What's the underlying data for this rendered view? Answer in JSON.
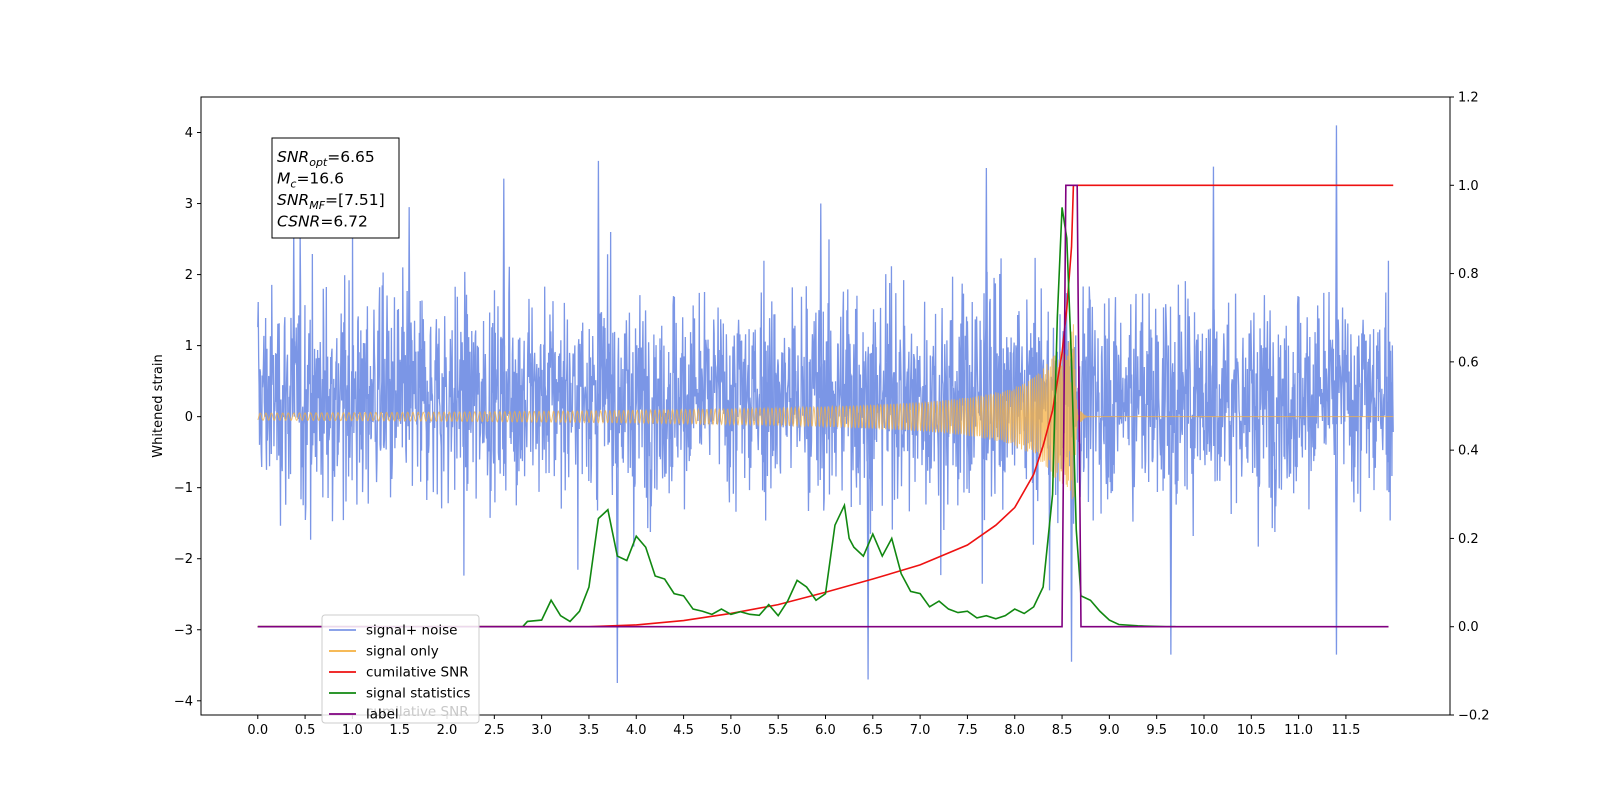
{
  "chart_data": {
    "type": "line",
    "xlabel": "",
    "ylabel": "Whitened strain",
    "xlim": [
      -0.6,
      12.6
    ],
    "ylim": [
      -4.2,
      4.5
    ],
    "y2lim": [
      -0.2,
      1.2
    ],
    "xticks": [
      0.0,
      0.5,
      1.0,
      1.5,
      2.0,
      2.5,
      3.0,
      3.5,
      4.0,
      4.5,
      5.0,
      5.5,
      6.0,
      6.5,
      7.0,
      7.5,
      8.0,
      8.5,
      9.0,
      9.5,
      10.0,
      10.5,
      11.0,
      11.5
    ],
    "xtick_labels": [
      "0.0",
      "0.5",
      "1.0",
      "1.5",
      "2.0",
      "2.5",
      "3.0",
      "3.5",
      "4.0",
      "4.5",
      "5.0",
      "5.5",
      "6.0",
      "6.5",
      "7.0",
      "7.5",
      "8.0",
      "8.5",
      "9.0",
      "9.5",
      "10.0",
      "10.5",
      "11.0",
      "11.5"
    ],
    "yticks": [
      4,
      3,
      2,
      1,
      0,
      -1,
      -2,
      -3,
      -4
    ],
    "ytick_labels": [
      "4",
      "3",
      "2",
      "1",
      "0",
      "−1",
      "−2",
      "−3",
      "−4"
    ],
    "y2ticks": [
      1.2,
      1.0,
      0.8,
      0.6,
      0.4,
      0.2,
      0.0,
      -0.2
    ],
    "y2tick_labels": [
      "1.2",
      "1.0",
      "0.8",
      "0.6",
      "0.4",
      "0.2",
      "0.0",
      "−0.2"
    ],
    "grid": false,
    "legend_position": "lower-left",
    "annotation": {
      "lines": [
        {
          "base": "SNR",
          "sub": "opt",
          "rest": "=6.65"
        },
        {
          "base": "M",
          "sub": "c",
          "rest": "=16.6"
        },
        {
          "base": "SNR",
          "sub": "MF",
          "rest": "=[7.51]"
        },
        {
          "base": "CSNR",
          "sub": "",
          "rest": "=6.72"
        }
      ]
    },
    "series": [
      {
        "name": "signal+ noise",
        "axis": "left",
        "color": "#7b96e6",
        "x_range": [
          0.0,
          12.0
        ],
        "noise_band": [
          -1.4,
          2.0
        ],
        "visible_peaks": [
          [
            0.38,
            2.65
          ],
          [
            1.6,
            2.95
          ],
          [
            2.6,
            3.35
          ],
          [
            3.6,
            3.6
          ],
          [
            5.95,
            3.0
          ],
          [
            7.7,
            3.5
          ],
          [
            10.1,
            3.52
          ],
          [
            11.4,
            4.1
          ],
          [
            3.8,
            -3.75
          ],
          [
            6.45,
            -3.7
          ],
          [
            8.6,
            -3.45
          ],
          [
            9.65,
            -3.35
          ],
          [
            11.4,
            -3.35
          ]
        ]
      },
      {
        "name": "signal only",
        "axis": "left",
        "color": "#f5b041",
        "chirp": {
          "start": 0.0,
          "merger": 8.62,
          "end": 12.0,
          "peak_amplitude": 1.3
        }
      },
      {
        "name": "cumilative SNR",
        "axis": "right",
        "color": "#ee1111",
        "x": [
          0.0,
          3.5,
          4.0,
          4.5,
          5.0,
          5.5,
          6.0,
          6.5,
          7.0,
          7.5,
          7.8,
          8.0,
          8.2,
          8.3,
          8.4,
          8.5,
          8.55,
          8.6,
          8.62,
          12.0
        ],
        "y": [
          0.0,
          0.0,
          0.004,
          0.014,
          0.03,
          0.05,
          0.078,
          0.108,
          0.14,
          0.185,
          0.23,
          0.27,
          0.345,
          0.41,
          0.49,
          0.62,
          0.72,
          0.86,
          1.0,
          1.0
        ]
      },
      {
        "name": "signal statistics",
        "axis": "right",
        "color": "#118811",
        "x": [
          0.0,
          2.8,
          2.85,
          3.0,
          3.1,
          3.2,
          3.3,
          3.4,
          3.5,
          3.6,
          3.7,
          3.8,
          3.9,
          4.0,
          4.1,
          4.2,
          4.3,
          4.4,
          4.5,
          4.6,
          4.7,
          4.8,
          4.9,
          5.0,
          5.1,
          5.2,
          5.3,
          5.4,
          5.5,
          5.6,
          5.7,
          5.8,
          5.9,
          6.0,
          6.1,
          6.2,
          6.25,
          6.3,
          6.4,
          6.5,
          6.6,
          6.7,
          6.8,
          6.9,
          7.0,
          7.1,
          7.2,
          7.3,
          7.4,
          7.5,
          7.6,
          7.7,
          7.8,
          7.9,
          8.0,
          8.1,
          8.2,
          8.3,
          8.4,
          8.45,
          8.5,
          8.55,
          8.6,
          8.65,
          8.7,
          8.8,
          8.9,
          9.0,
          9.1,
          9.3,
          9.6,
          9.7
        ],
        "y": [
          0.0,
          0.0,
          0.012,
          0.015,
          0.06,
          0.025,
          0.012,
          0.035,
          0.09,
          0.245,
          0.265,
          0.16,
          0.15,
          0.205,
          0.18,
          0.115,
          0.108,
          0.075,
          0.07,
          0.04,
          0.035,
          0.028,
          0.04,
          0.028,
          0.034,
          0.028,
          0.026,
          0.05,
          0.025,
          0.058,
          0.105,
          0.09,
          0.06,
          0.075,
          0.23,
          0.275,
          0.2,
          0.18,
          0.16,
          0.21,
          0.16,
          0.2,
          0.12,
          0.08,
          0.075,
          0.045,
          0.058,
          0.04,
          0.032,
          0.035,
          0.02,
          0.025,
          0.018,
          0.025,
          0.04,
          0.03,
          0.045,
          0.09,
          0.3,
          0.7,
          0.95,
          0.88,
          0.6,
          0.22,
          0.07,
          0.06,
          0.035,
          0.015,
          0.005,
          0.002,
          0.0,
          0.0
        ]
      },
      {
        "name": "label",
        "axis": "right",
        "color": "#800080",
        "x": [
          0.0,
          8.5,
          8.54,
          8.66,
          8.7,
          11.95
        ],
        "y": [
          0.0,
          0.0,
          1.0,
          1.0,
          0.0,
          0.0
        ]
      }
    ],
    "legend_ghost_text": "cumilative SNR"
  }
}
